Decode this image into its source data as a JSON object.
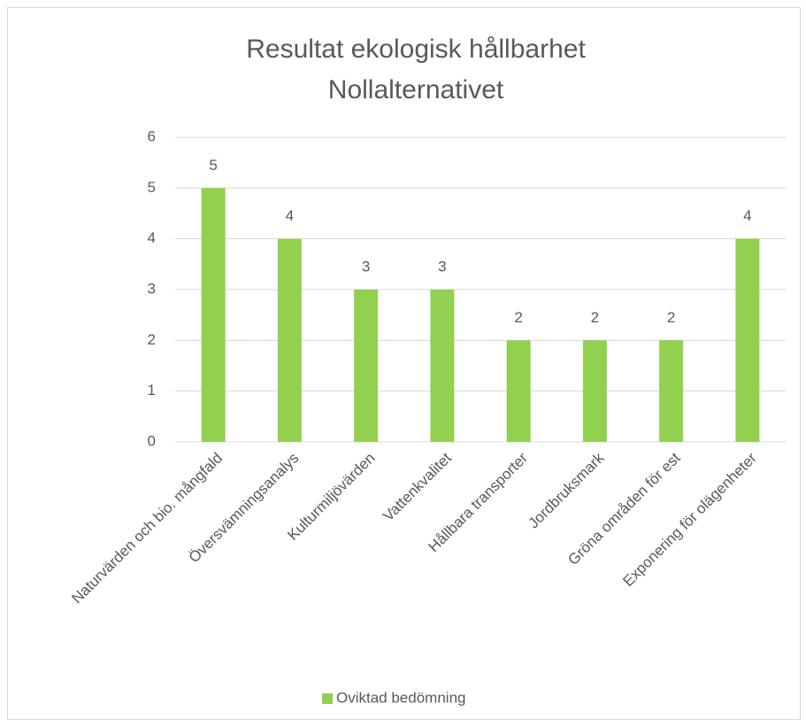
{
  "chart_data": {
    "type": "bar",
    "title": [
      "Resultat ekologisk hållbarhet",
      "Nollalternativet"
    ],
    "categories": [
      "Naturvärden och bio. mångfald",
      "Översvämningsanalys",
      "Kulturmiljövärden",
      "Vattenkvalitet",
      "Hållbara transporter",
      "Jordbruksmark",
      "Gröna områden för est",
      "Exponering för olägenheter"
    ],
    "series": [
      {
        "name": "Oviktad bedömning",
        "color": "#92d050",
        "values": [
          5,
          4,
          3,
          3,
          2,
          2,
          2,
          4
        ]
      }
    ],
    "ylim": [
      0,
      6
    ],
    "yticks": [
      0,
      1,
      2,
      3,
      4,
      5,
      6
    ],
    "grid": true,
    "legend": "bottom"
  }
}
